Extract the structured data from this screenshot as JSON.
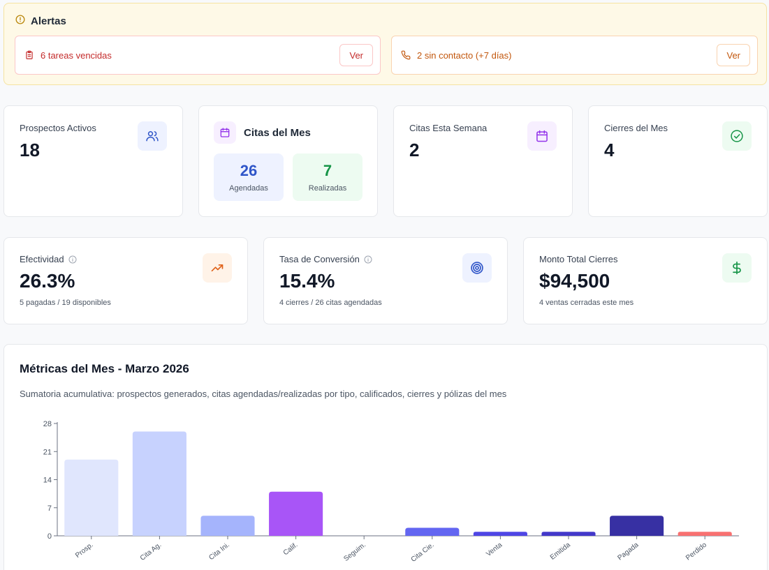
{
  "alerts": {
    "title": "Alertas",
    "items": [
      {
        "text": "6 tareas vencidas",
        "button": "Ver"
      },
      {
        "text": "2 sin contacto (+7 días)",
        "button": "Ver"
      }
    ]
  },
  "stats": {
    "prospectos": {
      "label": "Prospectos Activos",
      "value": "18"
    },
    "citas_mes": {
      "title": "Citas del Mes",
      "agendadas_value": "26",
      "agendadas_label": "Agendadas",
      "realizadas_value": "7",
      "realizadas_label": "Realizadas"
    },
    "citas_semana": {
      "label": "Citas Esta Semana",
      "value": "2"
    },
    "cierres": {
      "label": "Cierres del Mes",
      "value": "4"
    }
  },
  "kpis": {
    "efectividad": {
      "label": "Efectividad",
      "value": "26.3%",
      "sub": "5 pagadas / 19 disponibles"
    },
    "conversion": {
      "label": "Tasa de Conversión",
      "value": "15.4%",
      "sub": "4 cierres / 26 citas agendadas"
    },
    "monto": {
      "label": "Monto Total Cierres",
      "value": "$94,500",
      "sub": "4 ventas cerradas este mes"
    }
  },
  "metrics": {
    "title": "Métricas del Mes - Marzo 2026",
    "subtitle": "Sumatoria acumulativa: prospectos generados, citas agendadas/realizadas por tipo, calificados, cierres y pólizas del mes"
  },
  "colors": {
    "accent_blue": "#2f55c8",
    "success_green": "#169447",
    "danger_red": "#c42b2b",
    "warning_orange": "#c2560c"
  },
  "icons": {
    "alerts": "alert-circle-icon",
    "tareas": "clipboard-icon",
    "contacto": "phone-icon",
    "prospectos": "users-icon",
    "citas": "calendar-icon",
    "cierres": "check-circle-icon",
    "efectividad": "trending-up-icon",
    "conversion": "target-icon",
    "monto": "dollar-icon"
  },
  "chart_data": {
    "type": "bar",
    "categories": [
      "Prosp.",
      "Cita Ag.",
      "Cita Ini.",
      "Calif.",
      "Seguim.",
      "Cita Cie.",
      "Venta",
      "Emitida",
      "Pagada",
      "Perdido"
    ],
    "values": [
      19,
      26,
      5,
      11,
      0,
      2,
      1,
      1,
      5,
      1
    ],
    "colors": [
      "#e0e6fd",
      "#c7d2fe",
      "#a5b4fc",
      "#a855f7",
      "#818cf8",
      "#6366f1",
      "#4f46e5",
      "#4338ca",
      "#3730a3",
      "#f87171"
    ],
    "ylim": [
      0,
      28
    ],
    "yticks": [
      0,
      7,
      14,
      21,
      28
    ]
  }
}
